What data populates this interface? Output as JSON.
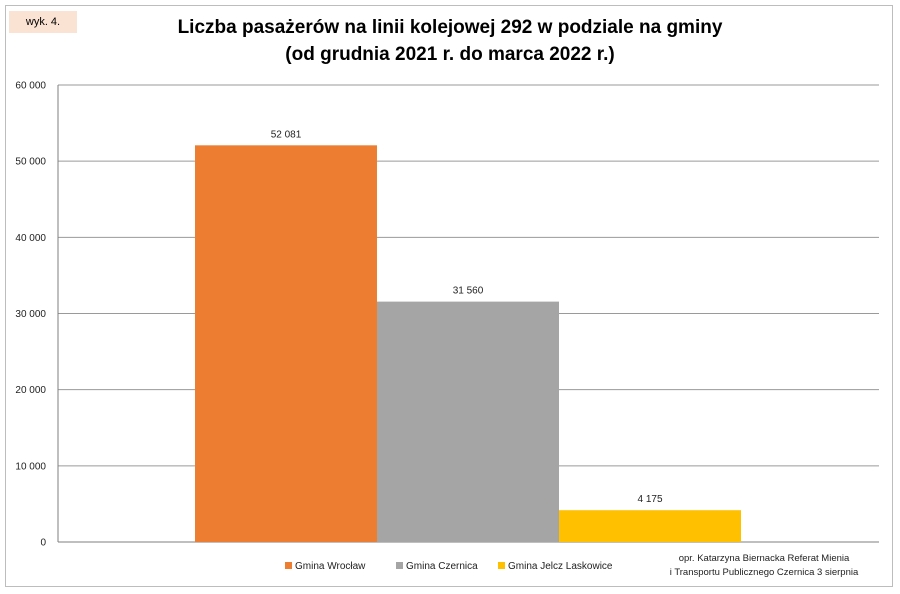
{
  "badge": "wyk. 4.",
  "title_line1": "Liczba pasażerów na linii kolejowej 292  w podziale na gminy",
  "title_line2": "(od grudnia 2021 r. do marca 2022 r.)",
  "source_line1": "opr. Katarzyna Biernacka Referat Mienia",
  "source_line2": "i Transportu Publicznego Czernica 3 sierpnia",
  "chart_data": {
    "type": "bar",
    "title": "Liczba pasażerów na linii kolejowej 292  w podziale na gminy (od grudnia 2021 r. do marca 2022 r.)",
    "ylim": [
      0,
      60000
    ],
    "y_ticks": [
      0,
      10000,
      20000,
      30000,
      40000,
      50000,
      60000
    ],
    "y_tick_labels": [
      "0",
      "10 000",
      "20 000",
      "30 000",
      "40 000",
      "50 000",
      "60 000"
    ],
    "grid": true,
    "legend_position": "bottom",
    "series": [
      {
        "name": "Gmina Wrocław",
        "value": 52081,
        "label": "52 081",
        "color": "#ed7d31"
      },
      {
        "name": "Gmina Czernica",
        "value": 31560,
        "label": "31 560",
        "color": "#a5a5a5"
      },
      {
        "name": "Gmina Jelcz Laskowice",
        "value": 4175,
        "label": "4 175",
        "color": "#ffc000"
      }
    ]
  }
}
